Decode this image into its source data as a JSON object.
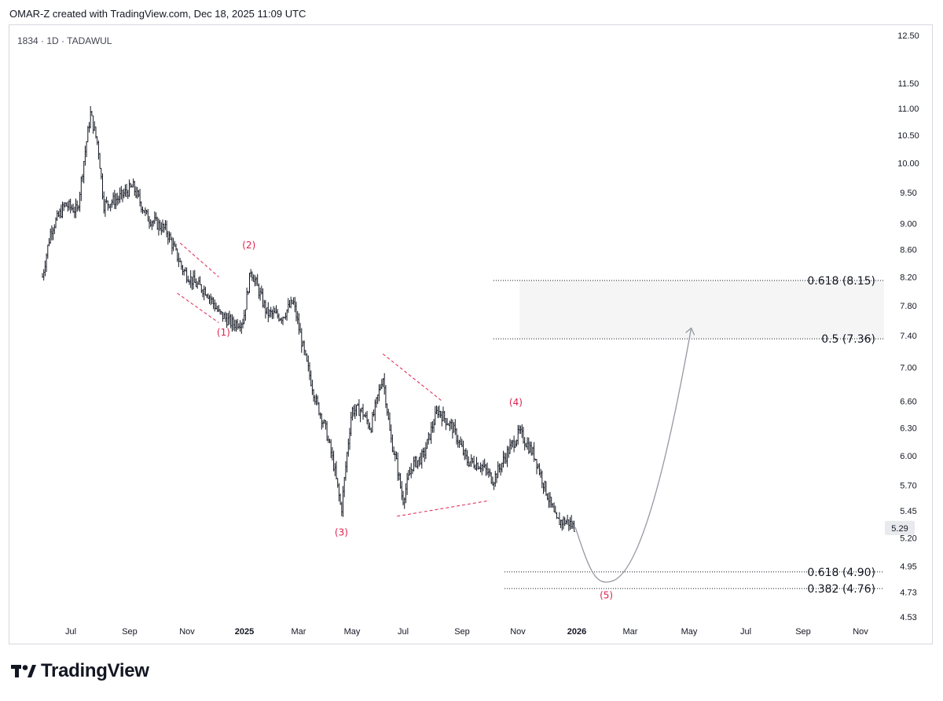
{
  "header": {
    "text": "OMAR-Z created with TradingView.com, Dec 18, 2025 11:09 UTC"
  },
  "symbol": {
    "text": "1834 · 1D · TADAWUL"
  },
  "footer": {
    "brand": "TradingView",
    "icon": "tradingview-logo-icon"
  },
  "colors": {
    "wave": "#e0234e",
    "bars": "#131722",
    "projection": "#9598a1",
    "zone": "#f5f5f6",
    "grid": "#d6d8de"
  },
  "chart_data": {
    "type": "ohlc-bar",
    "title": "",
    "x_ticks": [
      "Jul",
      "Sep",
      "Nov",
      "2025",
      "Mar",
      "May",
      "Jul",
      "Sep",
      "Nov",
      "2026",
      "Mar",
      "May",
      "Jul",
      "Sep",
      "Nov"
    ],
    "y_ticks": [
      "12.50",
      "11.50",
      "11.00",
      "10.50",
      "10.00",
      "9.50",
      "9.00",
      "8.60",
      "8.20",
      "7.80",
      "7.40",
      "7.00",
      "6.60",
      "6.30",
      "6.00",
      "5.70",
      "5.45",
      "5.20",
      "4.95",
      "4.73",
      "4.53"
    ],
    "y_scale": "log",
    "last_price": {
      "label": "5.29",
      "value": 5.29
    },
    "price_path": [
      {
        "date": "2024-06-01",
        "price": 8.2
      },
      {
        "date": "2024-06-10",
        "price": 8.9
      },
      {
        "date": "2024-06-25",
        "price": 9.3
      },
      {
        "date": "2024-07-08",
        "price": 9.2
      },
      {
        "date": "2024-07-22",
        "price": 10.9
      },
      {
        "date": "2024-07-30",
        "price": 10.3
      },
      {
        "date": "2024-08-05",
        "price": 9.3
      },
      {
        "date": "2024-08-20",
        "price": 9.4
      },
      {
        "date": "2024-09-05",
        "price": 9.6
      },
      {
        "date": "2024-09-20",
        "price": 9.1
      },
      {
        "date": "2024-10-10",
        "price": 8.9
      },
      {
        "date": "2024-10-28",
        "price": 8.3
      },
      {
        "date": "2024-11-10",
        "price": 8.1
      },
      {
        "date": "2024-11-22",
        "price": 8.0
      },
      {
        "date": "2024-12-05",
        "price": 7.7
      },
      {
        "date": "2024-12-20",
        "price": 7.55
      },
      {
        "date": "2024-12-31",
        "price": 7.6
      },
      {
        "date": "2025-01-08",
        "price": 8.3
      },
      {
        "date": "2025-01-25",
        "price": 7.7
      },
      {
        "date": "2025-02-10",
        "price": 7.65
      },
      {
        "date": "2025-02-22",
        "price": 7.85
      },
      {
        "date": "2025-03-05",
        "price": 7.2
      },
      {
        "date": "2025-03-18",
        "price": 6.6
      },
      {
        "date": "2025-03-28",
        "price": 6.3
      },
      {
        "date": "2025-04-06",
        "price": 5.9
      },
      {
        "date": "2025-04-14",
        "price": 5.45
      },
      {
        "date": "2025-04-25",
        "price": 6.5
      },
      {
        "date": "2025-05-05",
        "price": 6.5
      },
      {
        "date": "2025-05-15",
        "price": 6.3
      },
      {
        "date": "2025-05-28",
        "price": 6.9
      },
      {
        "date": "2025-06-05",
        "price": 6.2
      },
      {
        "date": "2025-06-12",
        "price": 5.9
      },
      {
        "date": "2025-06-18",
        "price": 5.55
      },
      {
        "date": "2025-06-28",
        "price": 5.9
      },
      {
        "date": "2025-07-10",
        "price": 6.0
      },
      {
        "date": "2025-07-25",
        "price": 6.5
      },
      {
        "date": "2025-08-10",
        "price": 6.3
      },
      {
        "date": "2025-08-25",
        "price": 5.95
      },
      {
        "date": "2025-09-10",
        "price": 5.9
      },
      {
        "date": "2025-09-22",
        "price": 5.75
      },
      {
        "date": "2025-10-08",
        "price": 6.05
      },
      {
        "date": "2025-10-20",
        "price": 6.25
      },
      {
        "date": "2025-11-05",
        "price": 6.0
      },
      {
        "date": "2025-11-15",
        "price": 5.7
      },
      {
        "date": "2025-11-28",
        "price": 5.35
      },
      {
        "date": "2025-12-10",
        "price": 5.35
      },
      {
        "date": "2025-12-18",
        "price": 5.29
      }
    ],
    "wave_labels": [
      {
        "label": "(1)",
        "date": "2024-12-10",
        "price": 7.4
      },
      {
        "label": "(2)",
        "date": "2025-01-06",
        "price": 8.62
      },
      {
        "label": "(3)",
        "date": "2025-04-14",
        "price": 5.22
      },
      {
        "label": "(4)",
        "date": "2025-10-16",
        "price": 6.55
      },
      {
        "label": "(5)",
        "date": "2026-01-20",
        "price": 4.68
      }
    ],
    "wave_lines": [
      {
        "from": {
          "date": "2024-10-25",
          "price": 8.7
        },
        "to": {
          "date": "2024-12-05",
          "price": 8.2
        }
      },
      {
        "from": {
          "date": "2024-10-22",
          "price": 7.97
        },
        "to": {
          "date": "2024-12-05",
          "price": 7.57
        }
      },
      {
        "from": {
          "date": "2025-05-28",
          "price": 7.17
        },
        "to": {
          "date": "2025-07-30",
          "price": 6.6
        }
      },
      {
        "from": {
          "date": "2025-06-12",
          "price": 5.4
        },
        "to": {
          "date": "2025-09-18",
          "price": 5.55
        }
      }
    ],
    "projection": [
      {
        "date": "2025-12-18",
        "price": 5.3
      },
      {
        "date": "2026-01-25",
        "price": 4.82
      },
      {
        "date": "2026-04-20",
        "price": 7.5
      }
    ],
    "fib_levels": [
      {
        "label": "0.618 (8.15)",
        "price": 8.15
      },
      {
        "label": "0.5 (7.36)",
        "price": 7.36
      },
      {
        "label": "0.618 (4.90)",
        "price": 4.9
      },
      {
        "label": "0.382 (4.76)",
        "price": 4.76
      }
    ],
    "target_zone": {
      "from_date": "2025-10-20",
      "to_date": "2026-12-31",
      "low": 7.36,
      "high": 8.15
    }
  }
}
